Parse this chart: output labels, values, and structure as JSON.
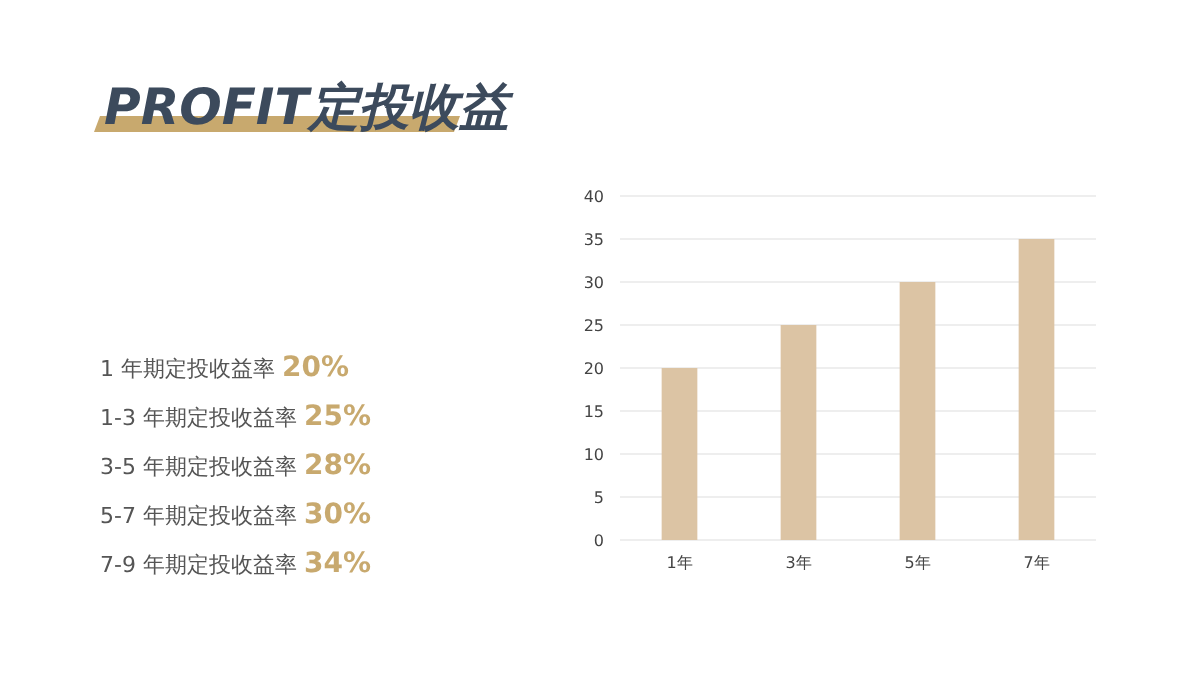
{
  "chart_data": {
    "type": "bar",
    "title": "PROFIT定投收益",
    "categories": [
      "1年",
      "3年",
      "5年",
      "7年"
    ],
    "values": [
      20,
      25,
      30,
      35
    ],
    "color": "#dcc4a4",
    "ylim": [
      0,
      40
    ],
    "yticks": [
      0,
      5,
      10,
      15,
      20,
      25,
      30,
      35,
      40
    ],
    "grid": "y",
    "annotations": [
      "1 年期定投收益率 20%",
      "1-3 年期定投收益率 25%",
      "3-5 年期定投收益率 28%",
      "5-7 年期定投收益率 30%",
      "7-9 年期定投收益率 34%"
    ]
  }
}
